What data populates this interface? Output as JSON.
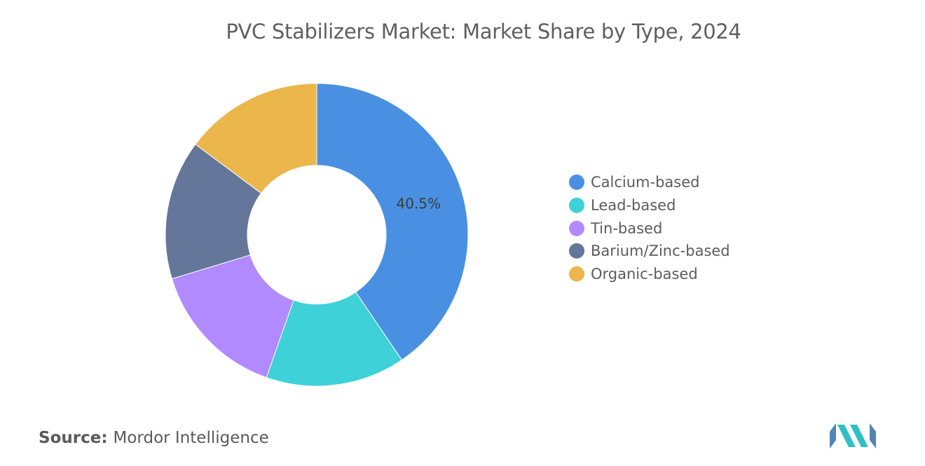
{
  "chart_data": {
    "type": "pie",
    "title": "PVC Stabilizers Market: Market Share by Type, 2024",
    "labels": [
      "Calcium-based",
      "Lead-based",
      "Tin-based",
      "Barium/Zinc-based",
      "Organic-based"
    ],
    "values": [
      40.5,
      14.9,
      14.9,
      14.9,
      14.8
    ],
    "colors": [
      "#4a90e2",
      "#3ed1d8",
      "#b18aff",
      "#64779a",
      "#ebb64c"
    ],
    "data_labels": [
      "40.5%",
      "",
      "",
      "",
      ""
    ],
    "donut": true,
    "legend_position": "right"
  },
  "source": {
    "label": "Source:",
    "text": "Mordor Intelligence"
  },
  "logo": {
    "icon": "mordor-intelligence-logo",
    "colors": [
      "#4f85b6",
      "#2fbfc4"
    ]
  }
}
